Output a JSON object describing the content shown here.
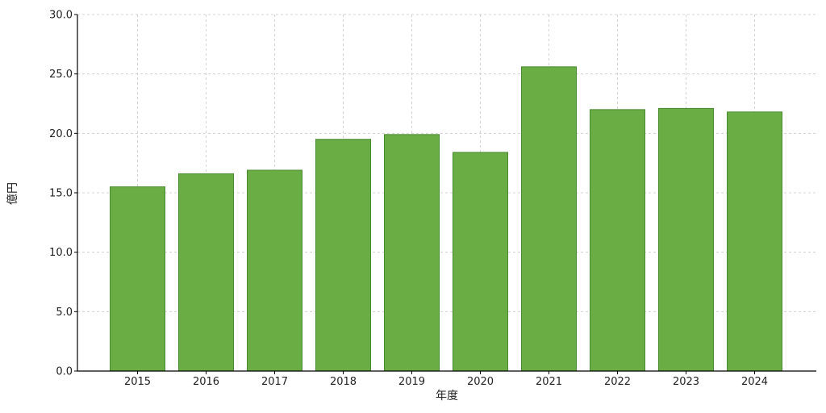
{
  "chart_data": {
    "type": "bar",
    "title": "",
    "xlabel": "年度",
    "ylabel": "億円",
    "categories": [
      "2015",
      "2016",
      "2017",
      "2018",
      "2019",
      "2020",
      "2021",
      "2022",
      "2023",
      "2024"
    ],
    "values": [
      15.5,
      16.6,
      16.9,
      19.5,
      19.9,
      18.4,
      25.6,
      22.0,
      22.1,
      21.8
    ],
    "ylim": [
      0,
      30
    ],
    "yticks": [
      "0.0",
      "5.0",
      "10.0",
      "15.0",
      "20.0",
      "25.0",
      "30.0"
    ],
    "grid": true,
    "bar_color": "#6aad44",
    "bar_edge_color": "#4a8a30"
  }
}
